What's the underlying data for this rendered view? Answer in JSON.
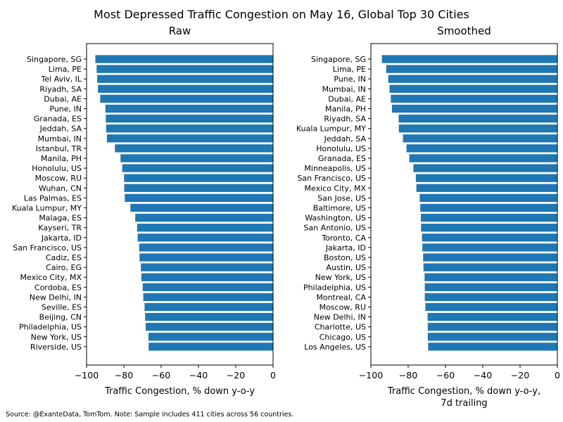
{
  "title": "Most Depressed Traffic Congestion on May 16, Global Top 30 Cities",
  "source_note": "Source: @ExanteData, TomTom.   Note: Sample includes 411 cities across 56 countries.",
  "colors": {
    "bar": "#1f77b4",
    "axis": "#000000"
  },
  "chart_data": [
    {
      "type": "bar",
      "orientation": "horizontal",
      "title": "Raw",
      "xlabel": [
        "Traffic Congestion, % down y-o-y"
      ],
      "xlim": [
        -100,
        0
      ],
      "xticks": [
        -100,
        -80,
        -60,
        -40,
        -20,
        0
      ],
      "categories": [
        "Singapore, SG",
        "Lima, PE",
        "Tel Aviv, IL",
        "Riyadh, SA",
        "Dubai, AE",
        "Pune, IN",
        "Granada, ES",
        "Jeddah, SA",
        "Mumbai, IN",
        "Istanbul, TR",
        "Manila, PH",
        "Honolulu, US",
        "Moscow, RU",
        "Wuhan, CN",
        "Las Palmas, ES",
        "Kuala Lumpur, MY",
        "Malaga, ES",
        "Kayseri, TR",
        "Jakarta, ID",
        "San Francisco, US",
        "Cadiz, ES",
        "Cairo, EG",
        "Mexico City, MX",
        "Cordoba, ES",
        "New Delhi, IN",
        "Seville, ES",
        "Beijing, CN",
        "Philadelphia, US",
        "New York, US",
        "Riverside, US"
      ],
      "values": [
        -95.3,
        -94.6,
        -94.3,
        -93.9,
        -92.7,
        -89.9,
        -89.7,
        -89.5,
        -89.1,
        -84.8,
        -81.8,
        -80.9,
        -79.9,
        -79.8,
        -79.5,
        -76.5,
        -73.9,
        -72.9,
        -72.6,
        -71.8,
        -71.6,
        -70.9,
        -70.6,
        -69.9,
        -69.6,
        -68.9,
        -68.6,
        -68.3,
        -66.8,
        -66.7
      ]
    },
    {
      "type": "bar",
      "orientation": "horizontal",
      "title": "Smoothed",
      "xlabel": [
        "Traffic Congestion, % down y-o-y,",
        "7d trailing"
      ],
      "xlim": [
        -100,
        0
      ],
      "xticks": [
        -100,
        -80,
        -60,
        -40,
        -20,
        0
      ],
      "categories": [
        "Singapore, SG",
        "Lima, PE",
        "Pune, IN",
        "Mumbai, IN",
        "Dubai, AE",
        "Manila, PH",
        "Riyadh, SA",
        "Kuala Lumpur, MY",
        "Jeddah, SA",
        "Honolulu, US",
        "Granada, ES",
        "Minneapolis, US",
        "San Francisco, US",
        "Mexico City, MX",
        "San Jose, US",
        "Baltimore, US",
        "Washington, US",
        "San Antonio, US",
        "Toronto, CA",
        "Jakarta, ID",
        "Boston, US",
        "Austin, US",
        "New York, US",
        "Philadelphia, US",
        "Montreal, CA",
        "Moscow, RU",
        "New Delhi, IN",
        "Charlotte, US",
        "Chicago, US",
        "Los Angeles, US"
      ],
      "values": [
        -94.1,
        -91.8,
        -90.7,
        -90.0,
        -89.3,
        -88.7,
        -85.1,
        -85.0,
        -82.8,
        -80.9,
        -79.4,
        -77.2,
        -75.9,
        -75.6,
        -73.8,
        -73.5,
        -73.2,
        -73.1,
        -72.6,
        -72.4,
        -72.0,
        -71.8,
        -71.2,
        -71.1,
        -71.1,
        -70.8,
        -69.6,
        -69.5,
        -69.5,
        -69.3
      ]
    }
  ]
}
